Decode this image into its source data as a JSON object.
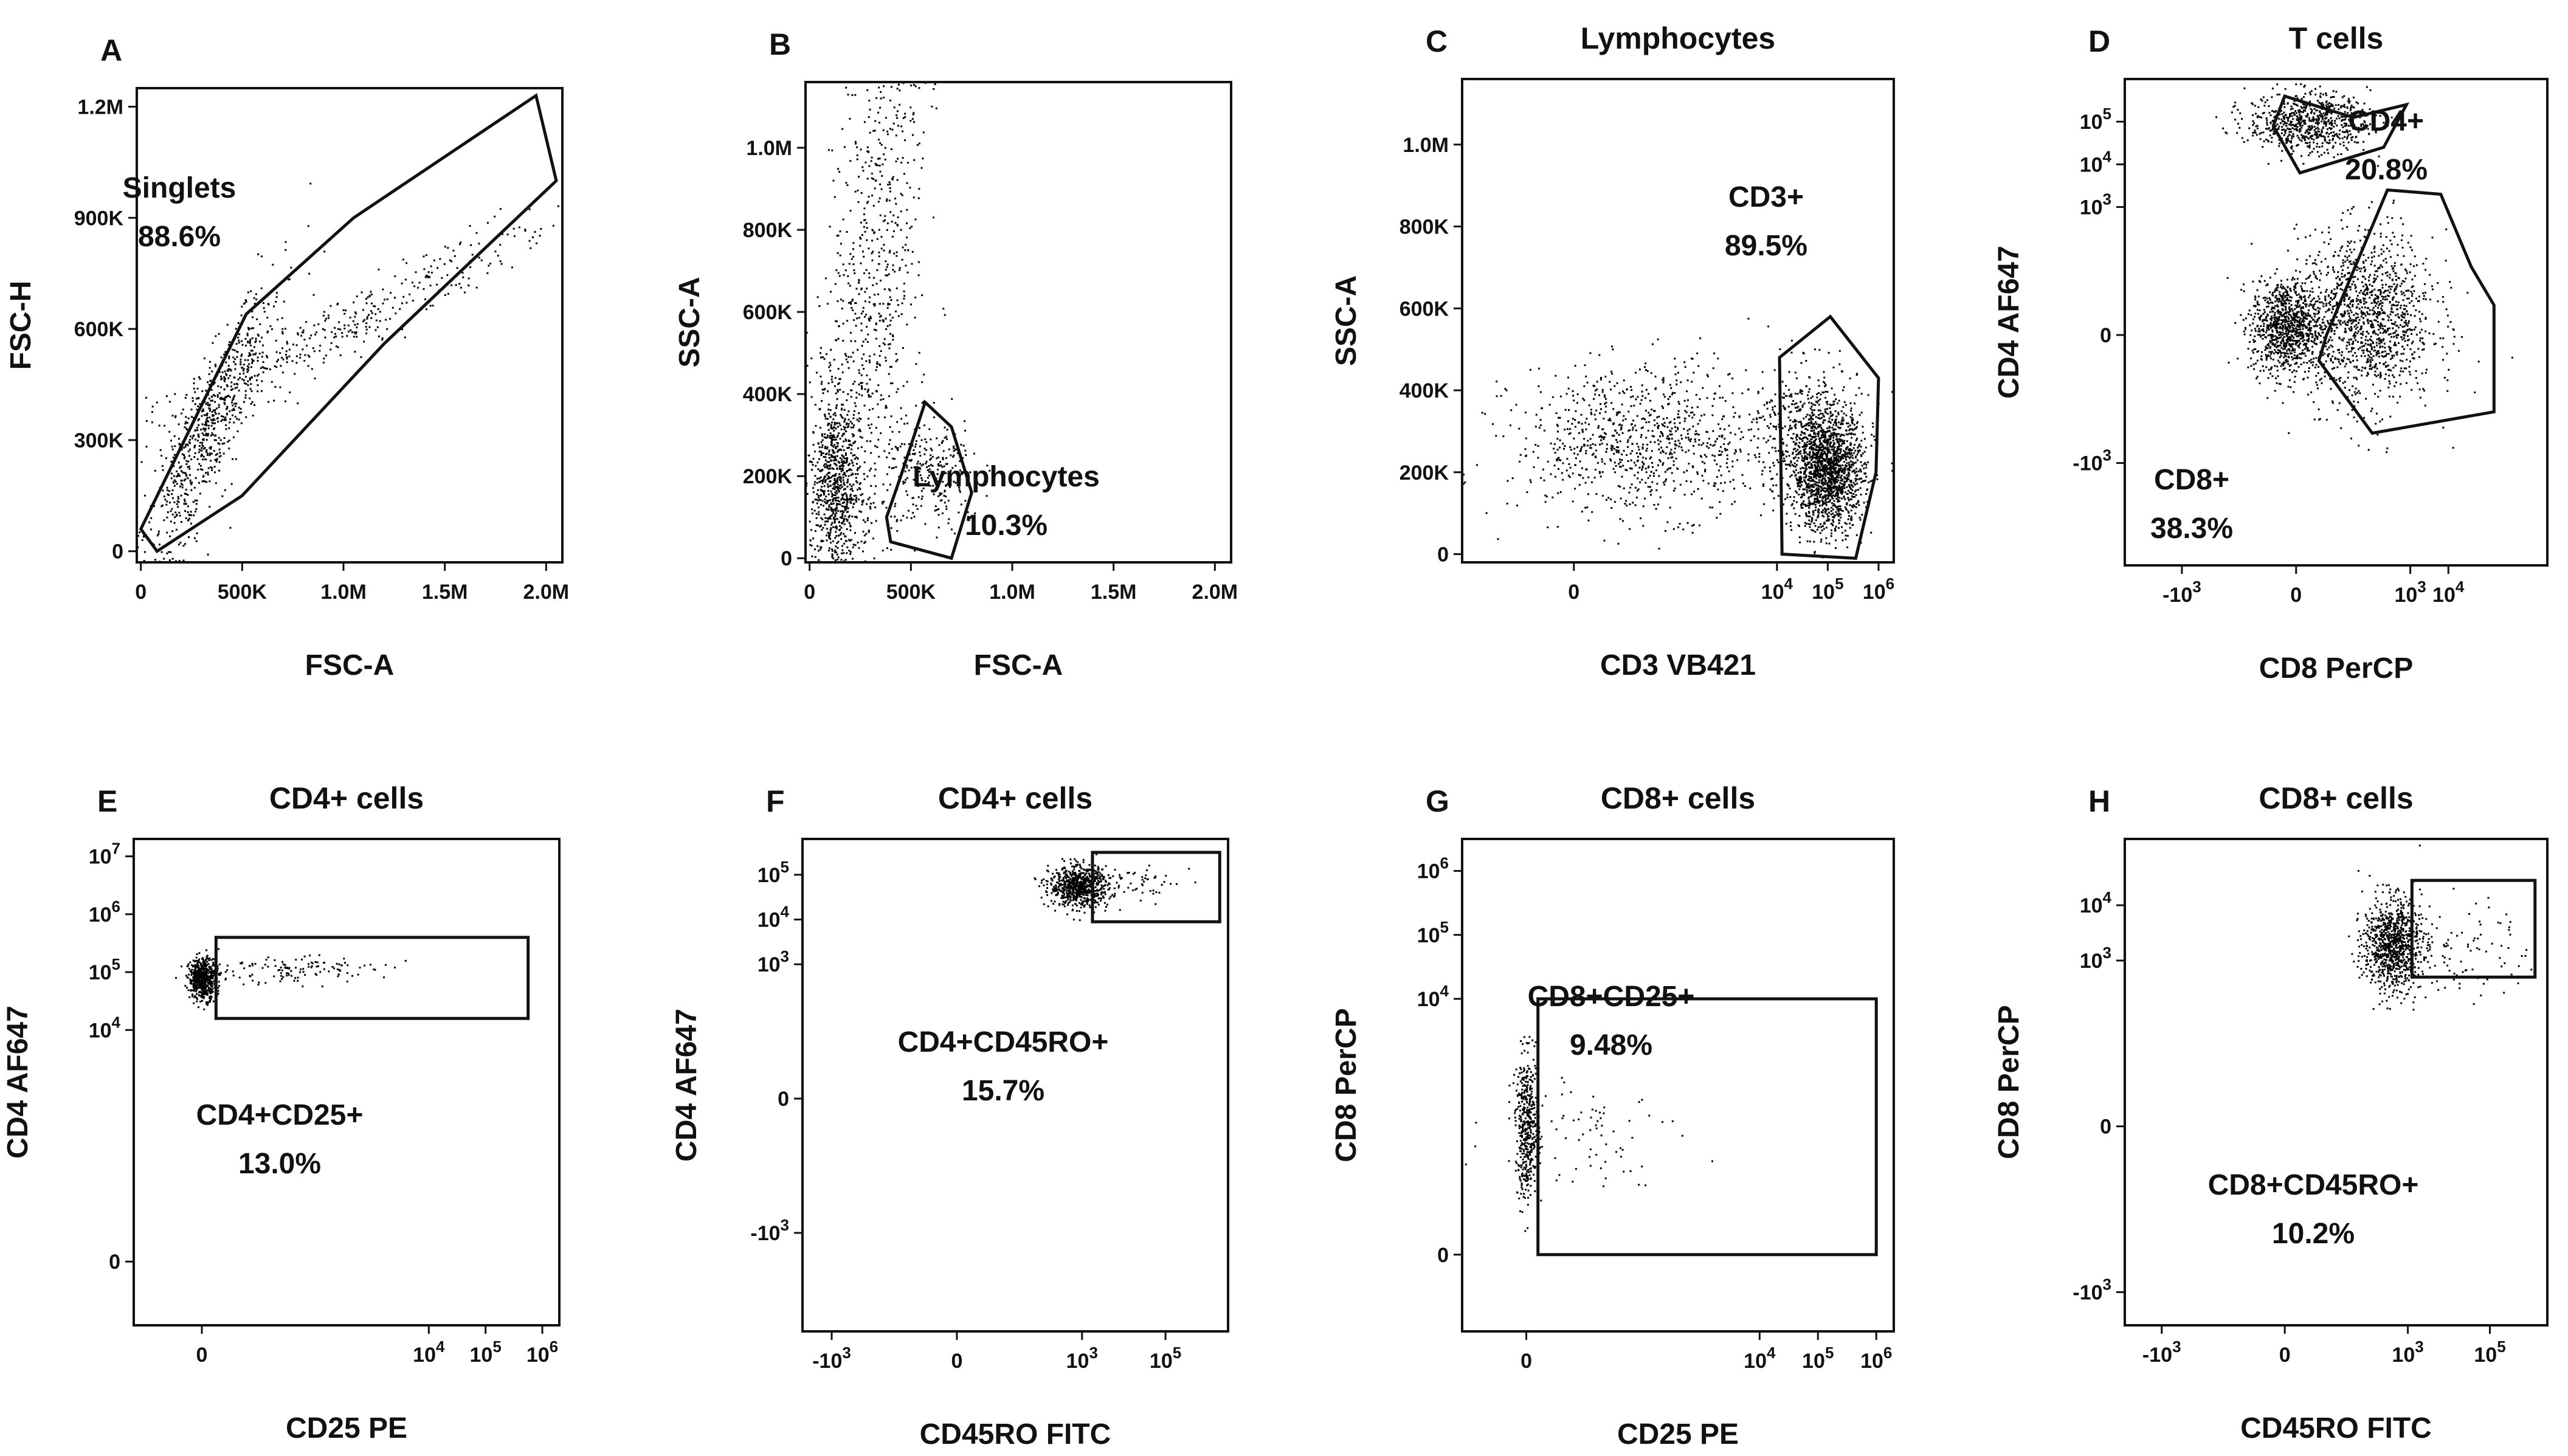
{
  "colors": {
    "ink": "#111111",
    "dot": "#000000",
    "background": "#ffffff"
  },
  "chart_data": [
    {
      "type": "scatter",
      "panel": "A",
      "title": "",
      "xlabel": "FSC-A",
      "ylabel": "FSC-H",
      "x_ticks": [
        {
          "v": 0,
          "label": "0"
        },
        {
          "v": 500,
          "label": "500K"
        },
        {
          "v": 1000,
          "label": "1.0M"
        },
        {
          "v": 1500,
          "label": "1.5M"
        },
        {
          "v": 2000,
          "label": "2.0M"
        }
      ],
      "y_ticks": [
        {
          "v": 0,
          "label": "0"
        },
        {
          "v": 300,
          "label": "300K"
        },
        {
          "v": 600,
          "label": "600K"
        },
        {
          "v": 900,
          "label": "900K"
        },
        {
          "v": 1200,
          "label": "1.2M"
        }
      ],
      "xlim": [
        -20,
        2080
      ],
      "ylim": [
        -30,
        1250
      ],
      "gates": [
        {
          "name": "Singlets",
          "percent": "88.6%",
          "shape": "polygon",
          "points": [
            [
              0,
              60
            ],
            [
              520,
              640
            ],
            [
              1050,
              900
            ],
            [
              1950,
              1230
            ],
            [
              2050,
              1000
            ],
            [
              1200,
              560
            ],
            [
              500,
              150
            ],
            [
              80,
              0
            ]
          ]
        }
      ],
      "populations": [
        {
          "cx": 330,
          "cy": 320,
          "sx": 180,
          "sy": 160,
          "n": 700,
          "rot": 0.93
        },
        {
          "cx": 900,
          "cy": 580,
          "sx": 420,
          "sy": 200,
          "n": 420,
          "rot": 0.55
        }
      ]
    },
    {
      "type": "scatter",
      "panel": "B",
      "title": "",
      "xlabel": "FSC-A",
      "ylabel": "SSC-A",
      "x_ticks": [
        {
          "v": 0,
          "label": "0"
        },
        {
          "v": 500,
          "label": "500K"
        },
        {
          "v": 1000,
          "label": "1.0M"
        },
        {
          "v": 1500,
          "label": "1.5M"
        },
        {
          "v": 2000,
          "label": "2.0M"
        }
      ],
      "y_ticks": [
        {
          "v": 0,
          "label": "0"
        },
        {
          "v": 200,
          "label": "200K"
        },
        {
          "v": 400,
          "label": "400K"
        },
        {
          "v": 600,
          "label": "600K"
        },
        {
          "v": 800,
          "label": "800K"
        },
        {
          "v": 1000,
          "label": "1.0M"
        }
      ],
      "xlim": [
        -20,
        2080
      ],
      "ylim": [
        -10,
        1160
      ],
      "gates": [
        {
          "name": "Lymphocytes",
          "percent": "10.3%",
          "shape": "polygon",
          "points": [
            [
              380,
              100
            ],
            [
              450,
              200
            ],
            [
              570,
              380
            ],
            [
              700,
              320
            ],
            [
              800,
              160
            ],
            [
              700,
              0
            ],
            [
              400,
              40
            ]
          ]
        }
      ],
      "populations": [
        {
          "cx": 120,
          "cy": 180,
          "sx": 60,
          "sy": 110,
          "n": 700,
          "rot": 0
        },
        {
          "cx": 280,
          "cy": 560,
          "sx": 160,
          "sy": 280,
          "n": 900,
          "rot": 1.2
        },
        {
          "cx": 600,
          "cy": 200,
          "sx": 120,
          "sy": 70,
          "n": 260,
          "rot": 0
        }
      ]
    },
    {
      "type": "scatter",
      "panel": "C",
      "title": "Lymphocytes",
      "xlabel": "CD3 VB421",
      "ylabel": "SSC-A",
      "x_ticks": [
        {
          "v": 0,
          "label": "0"
        },
        {
          "v": 4,
          "label": "10",
          "sup": "4"
        },
        {
          "v": 5,
          "label": "10",
          "sup": "5"
        },
        {
          "v": 6,
          "label": "10",
          "sup": "6"
        }
      ],
      "y_ticks": [
        {
          "v": 0,
          "label": "0"
        },
        {
          "v": 200,
          "label": "200K"
        },
        {
          "v": 400,
          "label": "400K"
        },
        {
          "v": 600,
          "label": "600K"
        },
        {
          "v": 800,
          "label": "800K"
        },
        {
          "v": 1000,
          "label": "1.0M"
        }
      ],
      "xlim": [
        -2.2,
        6.3
      ],
      "ylim": [
        -20,
        1160
      ],
      "gates": [
        {
          "name": "CD3+",
          "percent": "89.5%",
          "shape": "polygon",
          "points": [
            [
              4.05,
              480
            ],
            [
              5.05,
              580
            ],
            [
              6.0,
              430
            ],
            [
              5.95,
              200
            ],
            [
              5.55,
              -10
            ],
            [
              4.1,
              0
            ]
          ]
        }
      ],
      "populations": [
        {
          "cx": 1.4,
          "cy": 280,
          "sx": 1.3,
          "sy": 90,
          "n": 900,
          "rot": 0
        },
        {
          "cx": 5.0,
          "cy": 200,
          "sx": 0.35,
          "sy": 70,
          "n": 1400,
          "rot": 0
        },
        {
          "cx": 4.6,
          "cy": 290,
          "sx": 0.5,
          "sy": 90,
          "n": 500,
          "rot": 0
        }
      ]
    },
    {
      "type": "scatter",
      "panel": "D",
      "title": "T cells",
      "xlabel": "CD8 PerCP",
      "ylabel": "CD4 AF647",
      "x_ticks": [
        {
          "v": -3,
          "label": "-10",
          "sup": "3"
        },
        {
          "v": 0,
          "label": "0"
        },
        {
          "v": 3,
          "label": "10",
          "sup": "3"
        },
        {
          "v": 4,
          "label": "10",
          "sup": "4"
        }
      ],
      "y_ticks": [
        {
          "v": -3,
          "label": "-10",
          "sup": "3"
        },
        {
          "v": 0,
          "label": "0"
        },
        {
          "v": 3,
          "label": "10",
          "sup": "3"
        },
        {
          "v": 4,
          "label": "10",
          "sup": "4"
        },
        {
          "v": 5,
          "label": "10",
          "sup": "5"
        }
      ],
      "xlim": [
        -4.5,
        6.6
      ],
      "ylim": [
        -5.4,
        6.0
      ],
      "gates": [
        {
          "name": "CD4+",
          "percent": "20.8%",
          "shape": "polygon",
          "points": [
            [
              -0.3,
              5.6
            ],
            [
              1.5,
              5.1
            ],
            [
              2.9,
              5.4
            ],
            [
              2.3,
              4.4
            ],
            [
              0.1,
              3.8
            ],
            [
              -0.6,
              4.9
            ]
          ]
        },
        {
          "name": "CD8+",
          "percent": "38.3%",
          "shape": "polygon",
          "points": [
            [
              0.8,
              0.0
            ],
            [
              2.4,
              3.4
            ],
            [
              3.8,
              3.3
            ],
            [
              4.6,
              1.6
            ],
            [
              5.2,
              0.7
            ],
            [
              5.2,
              -1.8
            ],
            [
              2.0,
              -2.3
            ],
            [
              0.6,
              -0.6
            ]
          ]
        }
      ],
      "populations": [
        {
          "cx": 0.3,
          "cy": 5.0,
          "sx": 0.8,
          "sy": 0.35,
          "n": 700,
          "rot": 0
        },
        {
          "cx": -0.3,
          "cy": 0.2,
          "sx": 0.45,
          "sy": 0.55,
          "n": 900,
          "rot": 0
        },
        {
          "cx": 1.8,
          "cy": 0.4,
          "sx": 0.9,
          "sy": 1.0,
          "n": 1300,
          "rot": 0
        }
      ]
    },
    {
      "type": "scatter",
      "panel": "E",
      "title": "CD4+ cells",
      "xlabel": "CD25 PE",
      "ylabel": "CD4 AF647",
      "x_ticks": [
        {
          "v": 0,
          "label": "0"
        },
        {
          "v": 4,
          "label": "10",
          "sup": "4"
        },
        {
          "v": 5,
          "label": "10",
          "sup": "5"
        },
        {
          "v": 6,
          "label": "10",
          "sup": "6"
        }
      ],
      "y_ticks": [
        {
          "v": 0,
          "label": "0"
        },
        {
          "v": 4,
          "label": "10",
          "sup": "4"
        },
        {
          "v": 5,
          "label": "10",
          "sup": "5"
        },
        {
          "v": 6,
          "label": "10",
          "sup": "6"
        },
        {
          "v": 7,
          "label": "10",
          "sup": "7"
        }
      ],
      "xlim": [
        -1.2,
        6.3
      ],
      "ylim": [
        -1.1,
        7.3
      ],
      "gates": [
        {
          "name": "CD4+CD25+",
          "percent": "13.0%",
          "shape": "rect",
          "points": [
            [
              0.25,
              4.2
            ],
            [
              5.75,
              5.6
            ]
          ]
        }
      ],
      "populations": [
        {
          "cx": 0.0,
          "cy": 4.9,
          "sx": 0.12,
          "sy": 0.18,
          "n": 550,
          "rot": 0
        },
        {
          "cx": 1.4,
          "cy": 5.05,
          "sx": 0.9,
          "sy": 0.12,
          "n": 130,
          "rot": 0
        }
      ]
    },
    {
      "type": "scatter",
      "panel": "F",
      "title": "CD4+ cells",
      "xlabel": "CD45RO FITC",
      "ylabel": "CD4 AF647",
      "x_ticks": [
        {
          "v": -3,
          "label": "-10",
          "sup": "3"
        },
        {
          "v": 0,
          "label": "0"
        },
        {
          "v": 3,
          "label": "10",
          "sup": "3"
        },
        {
          "v": 5,
          "label": "10",
          "sup": "5"
        }
      ],
      "y_ticks": [
        {
          "v": -3,
          "label": "-10",
          "sup": "3"
        },
        {
          "v": 0,
          "label": "0"
        },
        {
          "v": 3,
          "label": "10",
          "sup": "3"
        },
        {
          "v": 4,
          "label": "10",
          "sup": "4"
        },
        {
          "v": 5,
          "label": "10",
          "sup": "5"
        }
      ],
      "xlim": [
        -3.7,
        6.5
      ],
      "ylim": [
        -5.2,
        5.8
      ],
      "gates": [
        {
          "name": "CD4+CD45RO+",
          "percent": "15.7%",
          "shape": "rect",
          "points": [
            [
              3.25,
              3.95
            ],
            [
              6.3,
              5.5
            ]
          ]
        }
      ],
      "populations": [
        {
          "cx": 2.9,
          "cy": 4.75,
          "sx": 0.35,
          "sy": 0.22,
          "n": 700,
          "rot": 0
        },
        {
          "cx": 4.0,
          "cy": 4.8,
          "sx": 0.8,
          "sy": 0.25,
          "n": 80,
          "rot": 0
        }
      ]
    },
    {
      "type": "scatter",
      "panel": "G",
      "title": "CD8+ cells",
      "xlabel": "CD25 PE",
      "ylabel": "CD8 PerCP",
      "x_ticks": [
        {
          "v": 0,
          "label": "0"
        },
        {
          "v": 4,
          "label": "10",
          "sup": "4"
        },
        {
          "v": 5,
          "label": "10",
          "sup": "5"
        },
        {
          "v": 6,
          "label": "10",
          "sup": "6"
        }
      ],
      "y_ticks": [
        {
          "v": 0,
          "label": "0"
        },
        {
          "v": 4,
          "label": "10",
          "sup": "4"
        },
        {
          "v": 5,
          "label": "10",
          "sup": "5"
        },
        {
          "v": 6,
          "label": "10",
          "sup": "6"
        }
      ],
      "xlim": [
        -1.1,
        6.3
      ],
      "ylim": [
        -1.2,
        6.5
      ],
      "gates": [
        {
          "name": "CD8+CD25+",
          "percent": "9.48%",
          "shape": "rect",
          "points": [
            [
              0.2,
              0.0
            ],
            [
              6.0,
              4.0
            ]
          ]
        }
      ],
      "populations": [
        {
          "cx": 0.0,
          "cy": 2.0,
          "sx": 0.1,
          "sy": 0.55,
          "n": 450,
          "rot": 0
        },
        {
          "cx": 1.0,
          "cy": 2.0,
          "sx": 0.8,
          "sy": 0.45,
          "n": 80,
          "rot": 0
        }
      ]
    },
    {
      "type": "scatter",
      "panel": "H",
      "title": "CD8+ cells",
      "xlabel": "CD45RO FITC",
      "ylabel": "CD8 PerCP",
      "x_ticks": [
        {
          "v": -3,
          "label": "-10",
          "sup": "3"
        },
        {
          "v": 0,
          "label": "0"
        },
        {
          "v": 3,
          "label": "10",
          "sup": "3"
        },
        {
          "v": 5,
          "label": "10",
          "sup": "5"
        }
      ],
      "y_ticks": [
        {
          "v": -3,
          "label": "-10",
          "sup": "3"
        },
        {
          "v": 0,
          "label": "0"
        },
        {
          "v": 3,
          "label": "10",
          "sup": "3"
        },
        {
          "v": 4,
          "label": "10",
          "sup": "4"
        }
      ],
      "xlim": [
        -3.9,
        6.4
      ],
      "ylim": [
        -3.6,
        5.2
      ],
      "gates": [
        {
          "name": "CD8+CD45RO+",
          "percent": "10.2%",
          "shape": "rect",
          "points": [
            [
              3.1,
              2.7
            ],
            [
              6.1,
              4.45
            ]
          ]
        }
      ],
      "populations": [
        {
          "cx": 2.6,
          "cy": 3.3,
          "sx": 0.35,
          "sy": 0.42,
          "n": 900,
          "rot": 0
        },
        {
          "cx": 4.2,
          "cy": 3.2,
          "sx": 0.9,
          "sy": 0.45,
          "n": 110,
          "rot": 0
        }
      ]
    }
  ]
}
